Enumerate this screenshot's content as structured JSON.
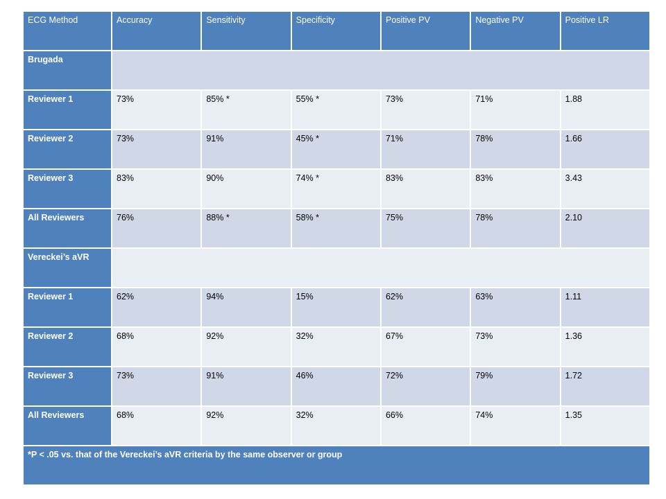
{
  "table": {
    "headers": [
      "ECG Method",
      "Accuracy",
      "Sensitivity",
      "Specificity",
      "Positive PV",
      "Negative PV",
      "Positive LR"
    ],
    "sections": [
      {
        "title": "Brugada",
        "rows": [
          {
            "label": "Reviewer 1",
            "values": [
              "73%",
              "85% *",
              "55%  *",
              "73%",
              "71%",
              "1.88"
            ]
          },
          {
            "label": "Reviewer 2",
            "values": [
              "73%",
              "91%",
              "45%  *",
              "71%",
              "78%",
              "1.66"
            ]
          },
          {
            "label": "Reviewer 3",
            "values": [
              "83%",
              "90%",
              "74%  *",
              "83%",
              "83%",
              "3.43"
            ]
          },
          {
            "label": "All Reviewers",
            "values": [
              "76%",
              "88% *",
              "58% *",
              "75%",
              "78%",
              "2.10"
            ]
          }
        ]
      },
      {
        "title": "Vereckei’s aVR",
        "rows": [
          {
            "label": "Reviewer 1",
            "values": [
              "62%",
              "94%",
              "15%",
              "62%",
              "63%",
              "1.11"
            ]
          },
          {
            "label": "Reviewer 2",
            "values": [
              "68%",
              "92%",
              "32%",
              "67%",
              "73%",
              "1.36"
            ]
          },
          {
            "label": "Reviewer 3",
            "values": [
              "73%",
              "91%",
              "46%",
              "72%",
              "79%",
              "1.72"
            ]
          },
          {
            "label": "All Reviewers",
            "values": [
              "68%",
              "92%",
              "32%",
              "66%",
              "74%",
              "1.35"
            ]
          }
        ]
      }
    ],
    "footnote": "*P < .05 vs. that of the Vereckei’s aVR criteria by the same observer or group"
  },
  "colors": {
    "header_blue": "#4f81bd",
    "band_dark": "#d0d8e8",
    "band_light": "#e9edf4",
    "header_text": "#ffffff"
  }
}
